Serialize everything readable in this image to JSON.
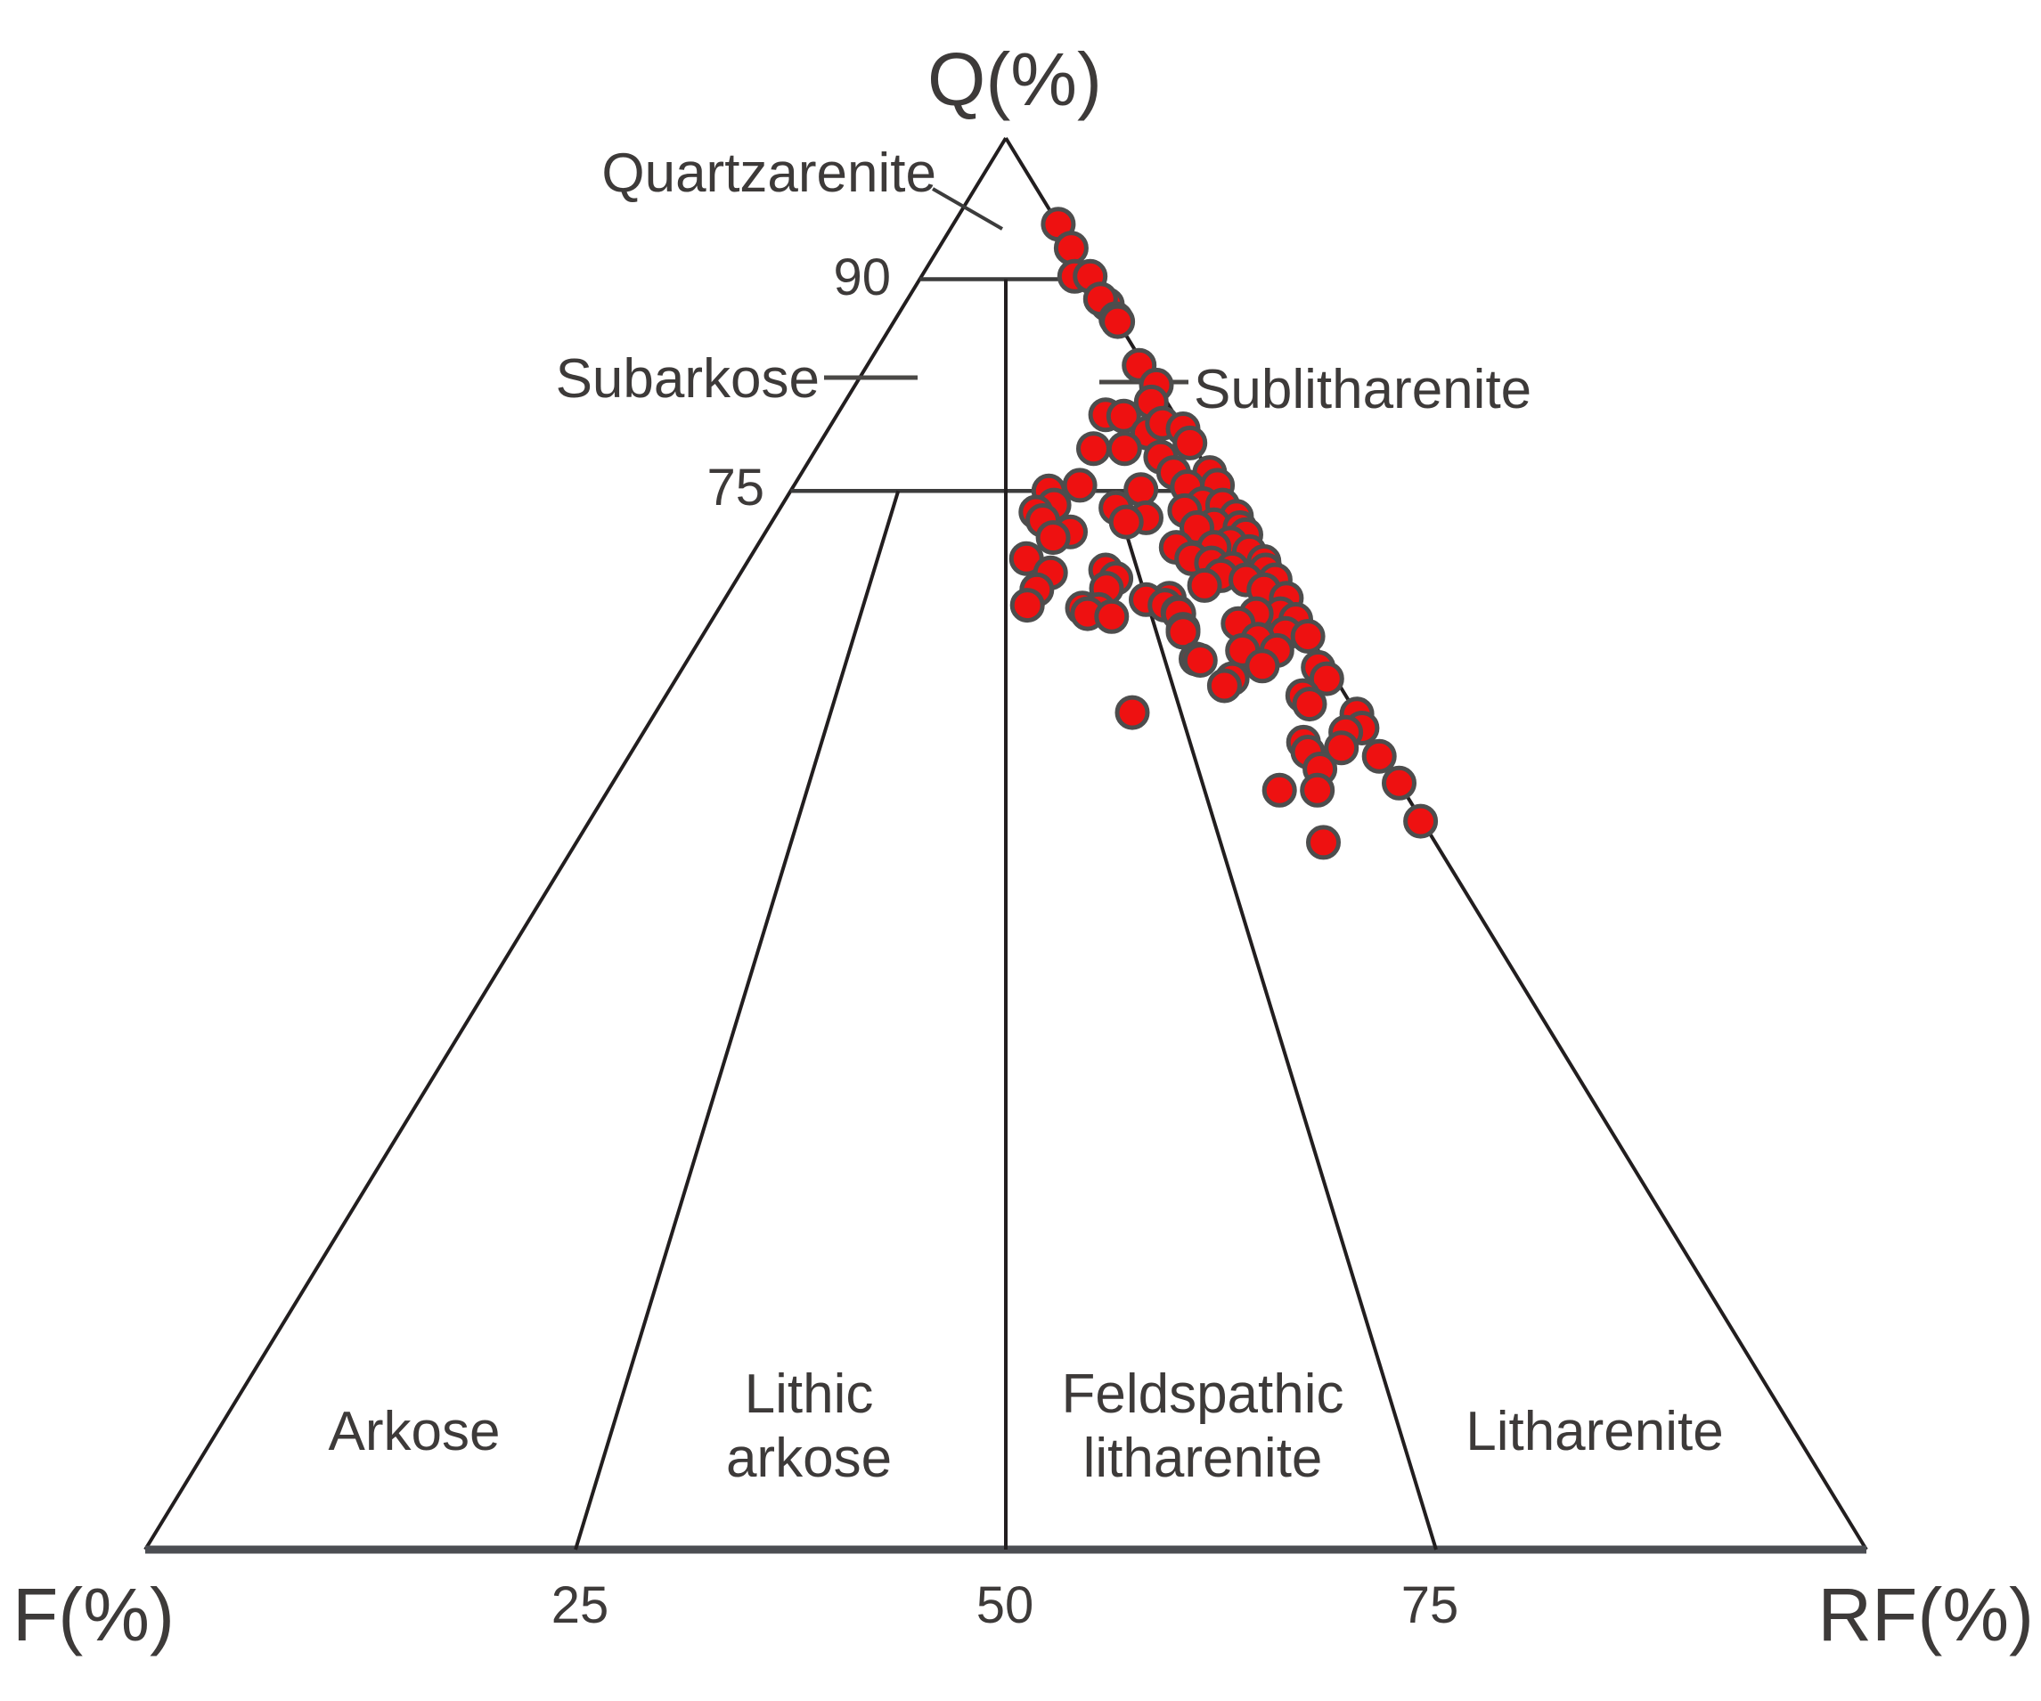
{
  "page": {
    "background": "#ffffff"
  },
  "chart_data": {
    "type": "scatter",
    "subtype": "ternary",
    "title": "",
    "description": "QFR ternary classification diagram (Folk) for sandstones with one red sample point series clustered near the Q-RF edge",
    "apex_labels": {
      "top": "Q(%)",
      "bottom_left": "F(%)",
      "bottom_right": "RF(%)"
    },
    "q_axis_tick_labels": [
      "90",
      "75"
    ],
    "base_tick_labels": [
      "25",
      "50",
      "75"
    ],
    "region_labels": [
      "Quartzarenite",
      "Subarkose",
      "Sublitharenite",
      "Arkose",
      "Lithic arkose",
      "Feldspathic litharenite",
      "Litharenite"
    ],
    "labels": {
      "q_axis": "Q(%)",
      "f_axis": "F(%)",
      "rf_axis": "RF(%)",
      "quartzarenite": "Quartzarenite",
      "subarkose": "Subarkose",
      "sublitharenite": "Sublitharenite",
      "arkose": "Arkose",
      "lithic_arkose_1": "Lithic",
      "lithic_arkose_2": "arkose",
      "feldspathic_1": "Feldspathic",
      "feldspathic_2": "litharenite",
      "litharenite": "Litharenite",
      "q90": "90",
      "q75": "75",
      "b25": "25",
      "b50": "50",
      "b75": "75"
    },
    "grid": false,
    "legend": "none",
    "boundaries": {
      "q_levels": [
        90,
        75
      ],
      "ratio_lines": [
        {
          "f_to_r": "3:1",
          "r_fraction": 0.25,
          "from_q": 75
        },
        {
          "f_to_r": "1:1",
          "r_fraction": 0.5,
          "from_q": 90
        },
        {
          "f_to_r": "1:3",
          "r_fraction": 0.75,
          "from_q": 75
        }
      ]
    },
    "colors": {
      "line": "#221e1f",
      "base_line": "#4b4d52",
      "text": "#3d3a39",
      "marker_fill": "#ee1111",
      "marker_stroke": "#4d4d4d"
    },
    "series": [
      {
        "name": "samples",
        "marker": "circle",
        "fill": "#ee1111",
        "stroke": "#4d4d4d",
        "marker_radius_px": 17,
        "points_Q_RF": [
          [
            93.9,
            6.1
          ],
          [
            92.2,
            7.7
          ],
          [
            90.2,
            8.9
          ],
          [
            90.2,
            9.8
          ],
          [
            88.2,
            11.8
          ],
          [
            88.6,
            11.2
          ],
          [
            87.2,
            12.8
          ],
          [
            87.0,
            13.0
          ],
          [
            83.9,
            15.8
          ],
          [
            82.5,
            17.5
          ],
          [
            81.3,
            17.8
          ],
          [
            80.4,
            15.6
          ],
          [
            80.3,
            16.7
          ],
          [
            79.1,
            18.7
          ],
          [
            79.8,
            19.2
          ],
          [
            79.4,
            20.6
          ],
          [
            78.0,
            16.1
          ],
          [
            78.0,
            17.9
          ],
          [
            78.4,
            21.5
          ],
          [
            77.4,
            20.3
          ],
          [
            76.3,
            23.7
          ],
          [
            76.3,
            21.6
          ],
          [
            75.4,
            16.6
          ],
          [
            75.1,
            20.3
          ],
          [
            75.3,
            22.9
          ],
          [
            75.4,
            24.6
          ],
          [
            75.0,
            15.0
          ],
          [
            74.1,
            24.4
          ],
          [
            74.0,
            15.8
          ],
          [
            74.0,
            25.6
          ],
          [
            73.8,
            19.5
          ],
          [
            73.6,
            23.6
          ],
          [
            73.5,
            15.0
          ],
          [
            73.2,
            26.8
          ],
          [
            73.1,
            21.6
          ],
          [
            72.9,
            15.7
          ],
          [
            72.8,
            20.6
          ],
          [
            72.6,
            25.8
          ],
          [
            72.4,
            24.9
          ],
          [
            72.4,
            27.4
          ],
          [
            72.1,
            17.7
          ],
          [
            71.9,
            28.0
          ],
          [
            71.7,
            16.9
          ],
          [
            71.3,
            27.4
          ],
          [
            71.0,
            24.4
          ],
          [
            71.0,
            26.6
          ],
          [
            70.7,
            28.8
          ],
          [
            70.2,
            25.7
          ],
          [
            70.2,
            16.1
          ],
          [
            70.0,
            30.0
          ],
          [
            69.9,
            27.0
          ],
          [
            69.5,
            28.4
          ],
          [
            69.4,
            30.4
          ],
          [
            69.4,
            21.1
          ],
          [
            69.2,
            18.0
          ],
          [
            69.0,
            28.0
          ],
          [
            68.8,
            22.0
          ],
          [
            68.7,
            31.3
          ],
          [
            68.7,
            29.6
          ],
          [
            68.3,
            27.4
          ],
          [
            68.1,
            21.8
          ],
          [
            68.0,
            31.0
          ],
          [
            68.0,
            17.8
          ],
          [
            67.4,
            32.6
          ],
          [
            67.4,
            25.8
          ],
          [
            67.3,
            24.5
          ],
          [
            66.9,
            25.8
          ],
          [
            66.9,
            17.8
          ],
          [
            66.7,
            21.1
          ],
          [
            66.6,
            22.1
          ],
          [
            66.4,
            26.8
          ],
          [
            66.3,
            32.8
          ],
          [
            66.3,
            31.4
          ],
          [
            66.3,
            26.9
          ],
          [
            66.3,
            21.6
          ],
          [
            66.1,
            23.1
          ],
          [
            65.9,
            33.9
          ],
          [
            65.6,
            30.7
          ],
          [
            65.2,
            27.7
          ],
          [
            65.0,
            27.8
          ],
          [
            64.9,
            33.8
          ],
          [
            64.7,
            35.2
          ],
          [
            64.5,
            32.4
          ],
          [
            63.7,
            33.9
          ],
          [
            63.7,
            31.9
          ],
          [
            63.1,
            29.5
          ],
          [
            63.0,
            29.8
          ],
          [
            62.6,
            33.6
          ],
          [
            62.5,
            36.9
          ],
          [
            61.7,
            37.8
          ],
          [
            61.7,
            32.3
          ],
          [
            61.2,
            32.1
          ],
          [
            60.5,
            37.0
          ],
          [
            59.9,
            37.7
          ],
          [
            59.3,
            27.7
          ],
          [
            59.2,
            40.8
          ],
          [
            58.2,
            41.6
          ],
          [
            57.9,
            40.8
          ],
          [
            57.2,
            38.7
          ],
          [
            56.8,
            41.1
          ],
          [
            56.5,
            39.3
          ],
          [
            56.2,
            43.6
          ],
          [
            55.3,
            40.6
          ],
          [
            54.3,
            45.7
          ],
          [
            53.8,
            41.2
          ],
          [
            53.8,
            39.0
          ],
          [
            51.6,
            48.3
          ],
          [
            50.1,
            43.4
          ]
        ]
      }
    ]
  }
}
